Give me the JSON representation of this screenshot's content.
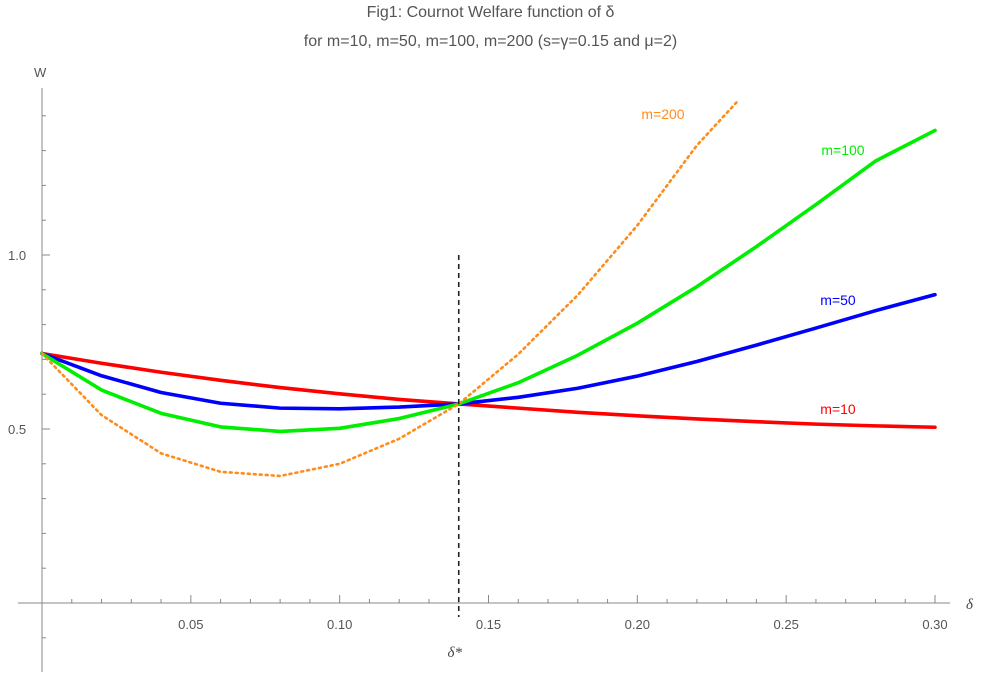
{
  "title_line1": "Fig1: Cournot Welfare function of δ",
  "title_line2": "for m=10, m=50, m=100, m=200 (s=γ=0.15 and μ=2)",
  "chart_data": {
    "type": "line",
    "title": "Fig1: Cournot Welfare function of δ",
    "subtitle": "for m=10, m=50, m=100, m=200 (s=γ=0.15 and μ=2)",
    "xlabel": "δ",
    "ylabel": "W",
    "xlim": [
      0,
      0.3
    ],
    "ylim": [
      0,
      1.45
    ],
    "x_ticks": [
      0.05,
      0.1,
      0.15,
      0.2,
      0.25,
      0.3
    ],
    "x_tick_labels": [
      "0.05",
      "0.10",
      "0.15",
      "0.20",
      "0.25",
      "0.30"
    ],
    "y_ticks": [
      0.5,
      1.0
    ],
    "y_tick_labels": "0.5|1.0",
    "grid": false,
    "vertical_line": {
      "x": 0.14,
      "label": "δ*",
      "style": "dashed",
      "color": "#222222"
    },
    "series": [
      {
        "name": "m=10",
        "color": "#ff0000",
        "style": "solid",
        "x": [
          0,
          0.02,
          0.04,
          0.06,
          0.08,
          0.1,
          0.12,
          0.14,
          0.16,
          0.18,
          0.2,
          0.22,
          0.24,
          0.26,
          0.28,
          0.3
        ],
        "y": [
          0.717,
          0.689,
          0.663,
          0.64,
          0.619,
          0.601,
          0.585,
          0.572,
          0.56,
          0.548,
          0.538,
          0.529,
          0.521,
          0.514,
          0.509,
          0.505
        ]
      },
      {
        "name": "m=50",
        "color": "#0000ff",
        "style": "solid",
        "x": [
          0,
          0.02,
          0.04,
          0.06,
          0.08,
          0.1,
          0.12,
          0.14,
          0.16,
          0.18,
          0.2,
          0.22,
          0.24,
          0.26,
          0.28,
          0.3
        ],
        "y": [
          0.717,
          0.653,
          0.605,
          0.574,
          0.56,
          0.558,
          0.563,
          0.572,
          0.591,
          0.617,
          0.652,
          0.694,
          0.741,
          0.79,
          0.84,
          0.886
        ]
      },
      {
        "name": "m=100",
        "color": "#00ee00",
        "style": "solid",
        "x": [
          0,
          0.02,
          0.04,
          0.06,
          0.08,
          0.1,
          0.12,
          0.14,
          0.16,
          0.18,
          0.2,
          0.22,
          0.24,
          0.26,
          0.28,
          0.3
        ],
        "y": [
          0.717,
          0.612,
          0.545,
          0.506,
          0.493,
          0.502,
          0.53,
          0.572,
          0.633,
          0.712,
          0.804,
          0.909,
          1.024,
          1.145,
          1.27,
          1.358
        ]
      },
      {
        "name": "m=200",
        "color": "#ff8c1a",
        "style": "dotted",
        "x": [
          0,
          0.02,
          0.04,
          0.06,
          0.08,
          0.1,
          0.12,
          0.14,
          0.16,
          0.18,
          0.2,
          0.22,
          0.234
        ],
        "y": [
          0.717,
          0.54,
          0.43,
          0.377,
          0.365,
          0.4,
          0.472,
          0.572,
          0.715,
          0.885,
          1.085,
          1.315,
          1.445
        ]
      }
    ]
  }
}
